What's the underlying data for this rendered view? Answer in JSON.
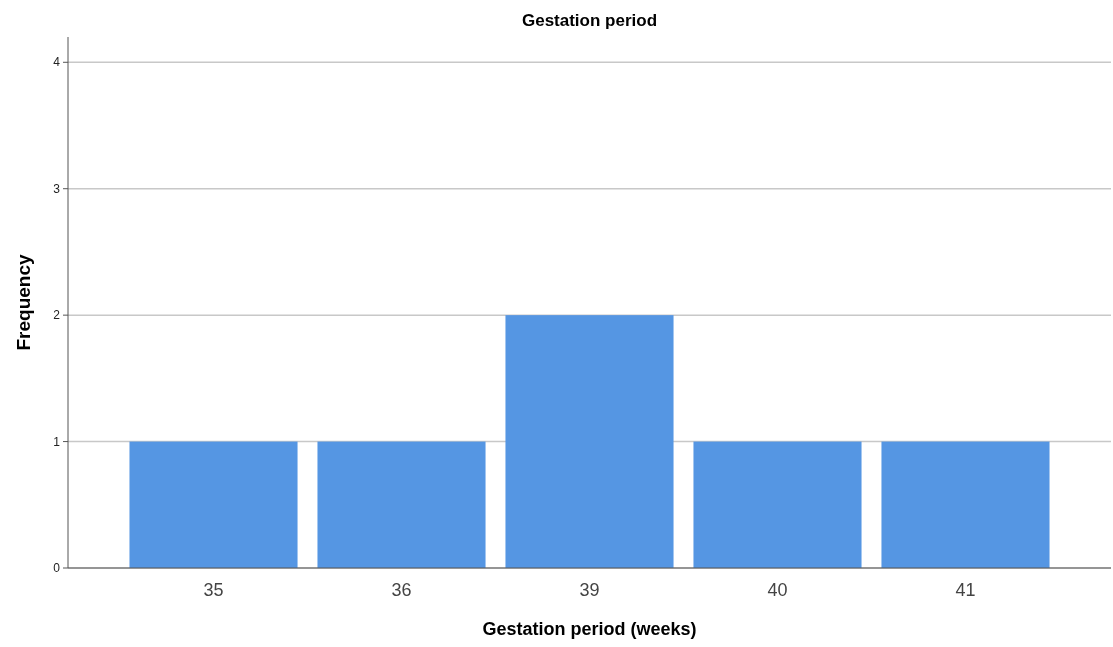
{
  "chart_data": {
    "type": "bar",
    "title": "Gestation period",
    "xlabel": "Gestation period (weeks)",
    "ylabel": "Frequency",
    "categories": [
      "35",
      "36",
      "39",
      "40",
      "41"
    ],
    "values": [
      1,
      1,
      2,
      1,
      1
    ],
    "color": "#5596e3",
    "ylim": [
      0,
      4.2
    ],
    "yticks": [
      0,
      1,
      2,
      3,
      4
    ],
    "grid": "y"
  }
}
